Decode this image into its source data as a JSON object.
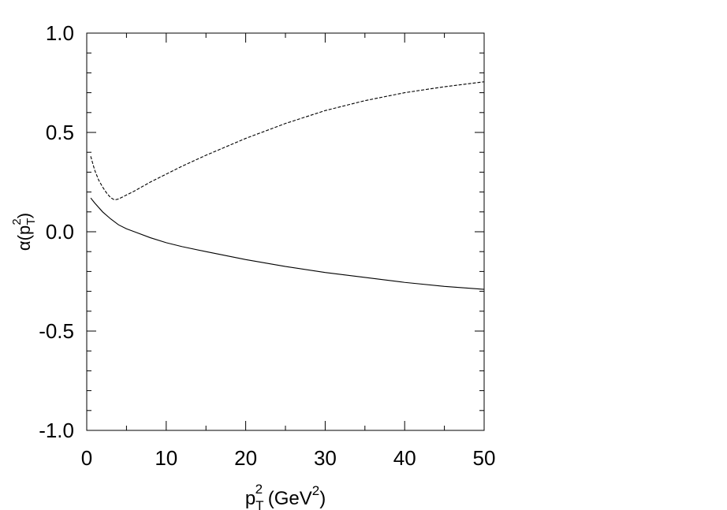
{
  "chart_data": {
    "type": "line",
    "title": "",
    "xlabel": {
      "base": "p",
      "sub": "T",
      "sup": "2",
      "rest": " (GeV",
      "rest_sup": "2",
      "close": ")"
    },
    "ylabel": {
      "sym": "α",
      "open": "(p",
      "sub": "T",
      "sup": "2",
      "close": ")"
    },
    "xlim": [
      0,
      50
    ],
    "ylim": [
      -1.0,
      1.0
    ],
    "x_ticks": [
      0,
      10,
      20,
      30,
      40,
      50
    ],
    "x_tick_labels": [
      "0",
      "10",
      "20",
      "30",
      "40",
      "50"
    ],
    "y_ticks": [
      -1.0,
      -0.5,
      0.0,
      0.5,
      1.0
    ],
    "y_tick_labels": [
      "-1.0",
      "-0.5",
      "0.0",
      "0.5",
      "1.0"
    ],
    "x_minor_step": 5,
    "y_minor_step": 0.1,
    "grid": false,
    "legend": "none",
    "series": [
      {
        "style": "dashed",
        "color": "#000000",
        "x": [
          0.5,
          1.0,
          1.5,
          2.0,
          2.5,
          3.0,
          3.5,
          4.0,
          5,
          6,
          8,
          10,
          12,
          15,
          20,
          25,
          30,
          35,
          40,
          45,
          50
        ],
        "y": [
          0.38,
          0.31,
          0.26,
          0.225,
          0.195,
          0.172,
          0.16,
          0.165,
          0.185,
          0.205,
          0.25,
          0.29,
          0.33,
          0.385,
          0.47,
          0.545,
          0.61,
          0.66,
          0.7,
          0.73,
          0.755
        ]
      },
      {
        "style": "solid",
        "color": "#000000",
        "x": [
          0.5,
          1,
          2,
          3,
          4,
          5,
          6,
          8,
          10,
          12,
          15,
          20,
          25,
          30,
          35,
          40,
          45,
          50
        ],
        "y": [
          0.17,
          0.145,
          0.1,
          0.065,
          0.035,
          0.015,
          0.0,
          -0.03,
          -0.055,
          -0.075,
          -0.1,
          -0.14,
          -0.175,
          -0.205,
          -0.23,
          -0.255,
          -0.275,
          -0.29
        ]
      }
    ]
  }
}
